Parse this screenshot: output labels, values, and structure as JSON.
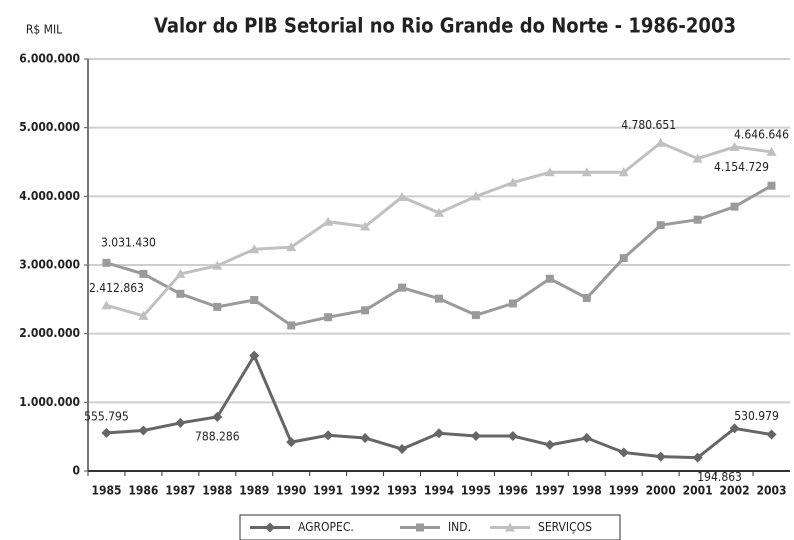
{
  "chart_data": {
    "type": "line",
    "title": "Valor do PIB Setorial no Rio Grande do Norte - 1986-2003",
    "y_label": "R$ MIL",
    "categories": [
      "1985",
      "1986",
      "1987",
      "1988",
      "1989",
      "1990",
      "1991",
      "1992",
      "1993",
      "1994",
      "1995",
      "1996",
      "1997",
      "1998",
      "1999",
      "2000",
      "2001",
      "2002",
      "2003"
    ],
    "series": [
      {
        "name": "AGROPEC.",
        "color": "#666666",
        "marker": "diamond",
        "values": [
          555795,
          590000,
          700000,
          788286,
          1680000,
          420000,
          520000,
          480000,
          320000,
          550000,
          510000,
          510000,
          380000,
          480000,
          270000,
          210000,
          194863,
          620000,
          530979
        ],
        "value_labels": [
          "555.795",
          null,
          null,
          "788.286",
          null,
          null,
          null,
          null,
          null,
          null,
          null,
          null,
          null,
          null,
          null,
          null,
          "194.863",
          null,
          "530.979"
        ]
      },
      {
        "name": "IND.",
        "color": "#9a9a9a",
        "marker": "square",
        "values": [
          3031430,
          2870000,
          2580000,
          2390000,
          2490000,
          2120000,
          2240000,
          2340000,
          2670000,
          2510000,
          2270000,
          2440000,
          2800000,
          2520000,
          3100000,
          3580000,
          3660000,
          3850000,
          4154729
        ],
        "value_labels": [
          "3.031.430",
          null,
          null,
          null,
          null,
          null,
          null,
          null,
          null,
          null,
          null,
          null,
          null,
          null,
          null,
          null,
          null,
          null,
          "4.154.729"
        ]
      },
      {
        "name": "SERVIÇOS",
        "color": "#c0c0c0",
        "marker": "triangle",
        "values": [
          2412863,
          2260000,
          2870000,
          2990000,
          3230000,
          3260000,
          3630000,
          3560000,
          3990000,
          3760000,
          4000000,
          4200000,
          4350000,
          4350000,
          4350000,
          4780651,
          4550000,
          4720000,
          4646646
        ],
        "value_labels": [
          "2.412.863",
          null,
          null,
          null,
          null,
          null,
          null,
          null,
          null,
          null,
          null,
          null,
          null,
          null,
          null,
          "4.780.651",
          null,
          null,
          "4.646.646"
        ]
      }
    ],
    "ylim": [
      0,
      6000000
    ],
    "yticks": [
      0,
      {
        "value": 1000000,
        "label": "1.000.000"
      },
      {
        "value": 2000000,
        "label": "2.000.000"
      },
      {
        "value": 3000000,
        "label": "3.000.000"
      },
      {
        "value": 4000000,
        "label": "4.000.000"
      },
      {
        "value": 5000000,
        "label": "5.000.000"
      },
      {
        "value": 6000000,
        "label": "6.000.000"
      }
    ],
    "grid": true,
    "legend": "bottom"
  }
}
